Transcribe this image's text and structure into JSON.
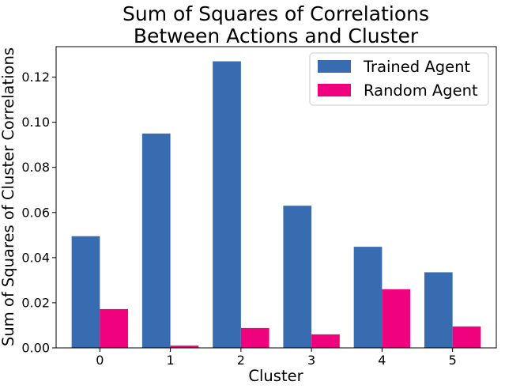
{
  "chart_data": {
    "type": "bar",
    "title_lines": [
      "Sum of Squares of Correlations",
      "Between Actions and Cluster"
    ],
    "xlabel": "Cluster",
    "ylabel": "Sum of Squares of Cluster Correlations",
    "categories": [
      "0",
      "1",
      "2",
      "3",
      "4",
      "5"
    ],
    "series": [
      {
        "name": "Trained Agent",
        "color": "#386cb0",
        "values": [
          0.0495,
          0.095,
          0.127,
          0.063,
          0.0448,
          0.0335
        ]
      },
      {
        "name": "Random Agent",
        "color": "#f0027f",
        "values": [
          0.0172,
          0.001,
          0.0088,
          0.006,
          0.026,
          0.0095
        ]
      }
    ],
    "ylim": [
      0,
      0.1335
    ],
    "yticks": [
      "0.00",
      "0.02",
      "0.04",
      "0.06",
      "0.08",
      "0.10",
      "0.12"
    ],
    "grid": false,
    "legend_position": "top-right"
  }
}
